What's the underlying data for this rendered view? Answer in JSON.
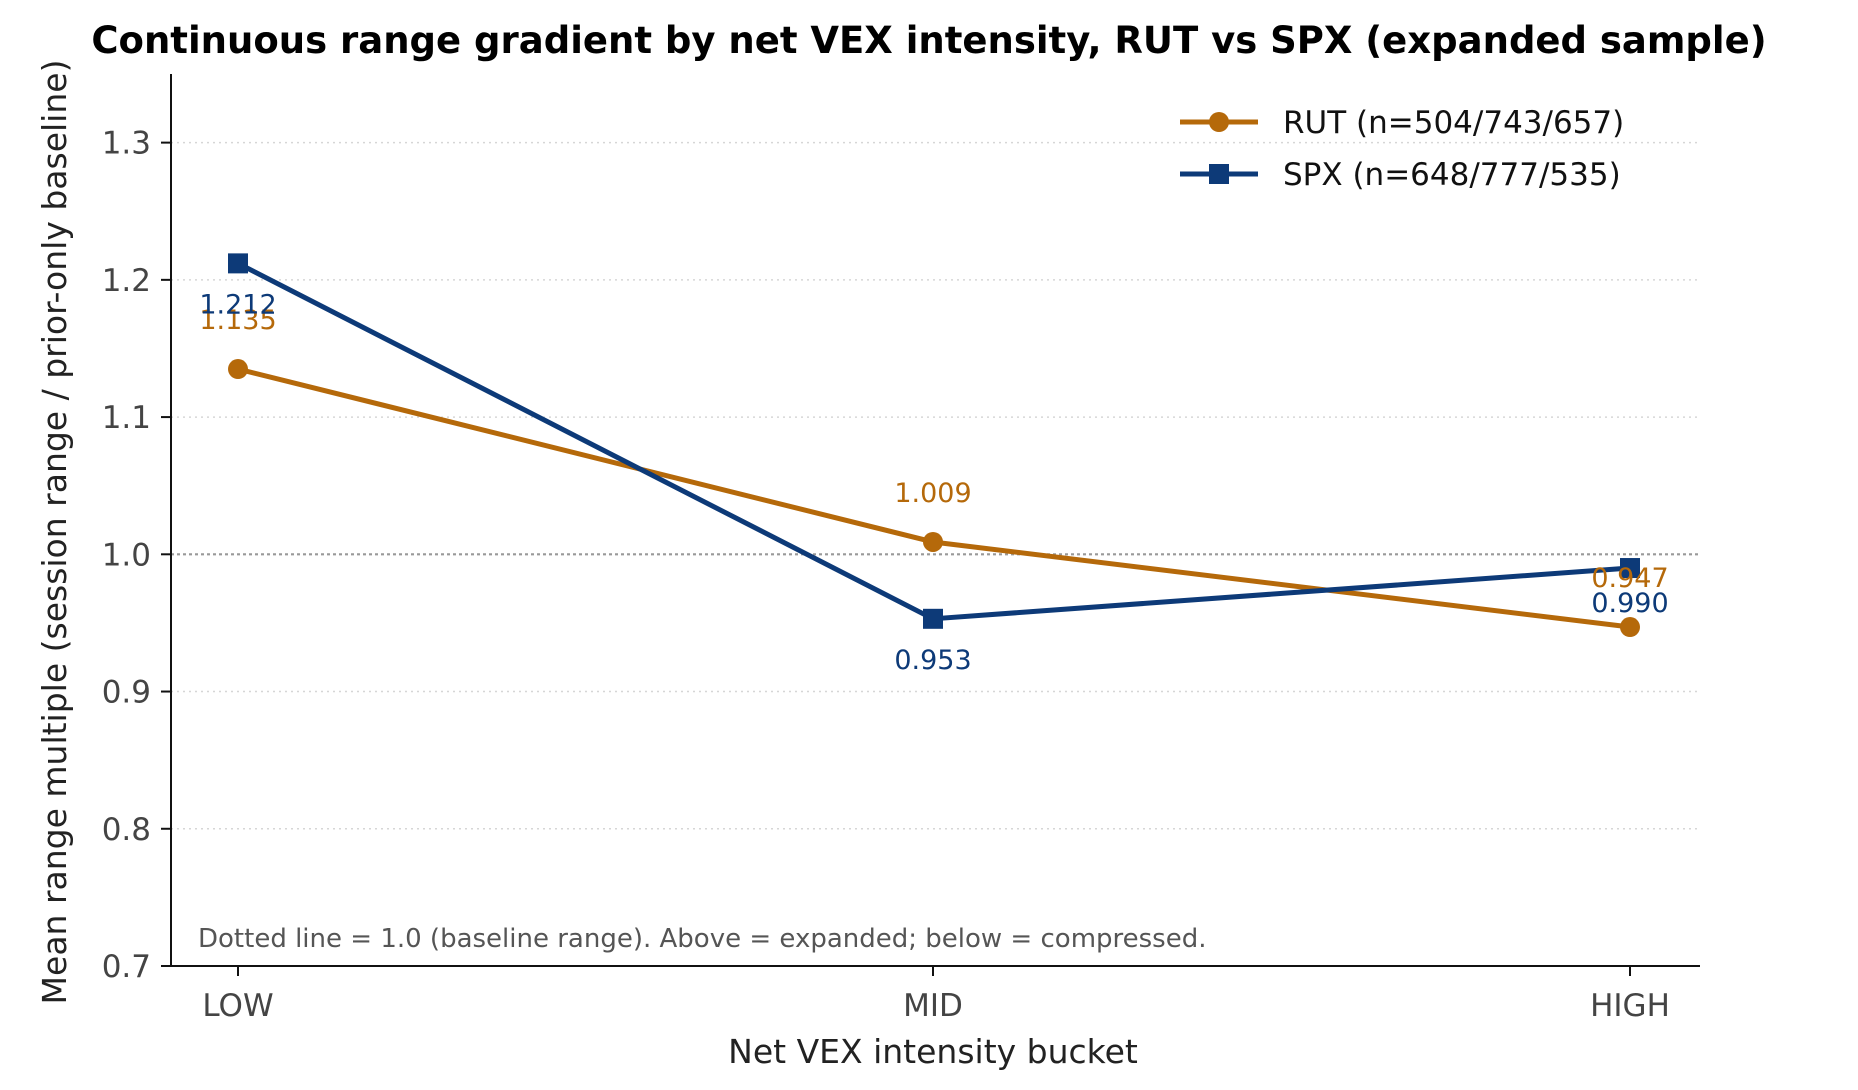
{
  "chart_data": {
    "type": "line",
    "title": "Continuous range gradient by net VEX intensity, RUT vs SPX (expanded sample)",
    "xlabel": "Net VEX intensity bucket",
    "ylabel": "Mean range multiple (session range / prior-only baseline)",
    "categories": [
      "LOW",
      "MID",
      "HIGH"
    ],
    "ylim": [
      0.7,
      1.35
    ],
    "yticks": [
      0.7,
      0.8,
      0.9,
      1.0,
      1.1,
      1.2,
      1.3
    ],
    "ytick_labels": [
      "0.7",
      "0.8",
      "0.9",
      "1.0",
      "1.1",
      "1.2",
      "1.3"
    ],
    "grid": "horizontal dotted",
    "reference_line": 1.0,
    "legend_position": "top-right",
    "annotation": "Dotted line = 1.0 (baseline range). Above = expanded; below = compressed.",
    "series": [
      {
        "name": "RUT (n=504/743/657)",
        "values": [
          1.135,
          1.009,
          0.947
        ],
        "labels": [
          "1.135",
          "1.009",
          "0.947"
        ],
        "color": "#b5690a",
        "marker": "circle"
      },
      {
        "name": "SPX (n=648/777/535)",
        "values": [
          1.212,
          0.953,
          0.99
        ],
        "labels": [
          "1.212",
          "0.953",
          "0.990"
        ],
        "color": "#0d3a78",
        "marker": "square"
      }
    ]
  }
}
